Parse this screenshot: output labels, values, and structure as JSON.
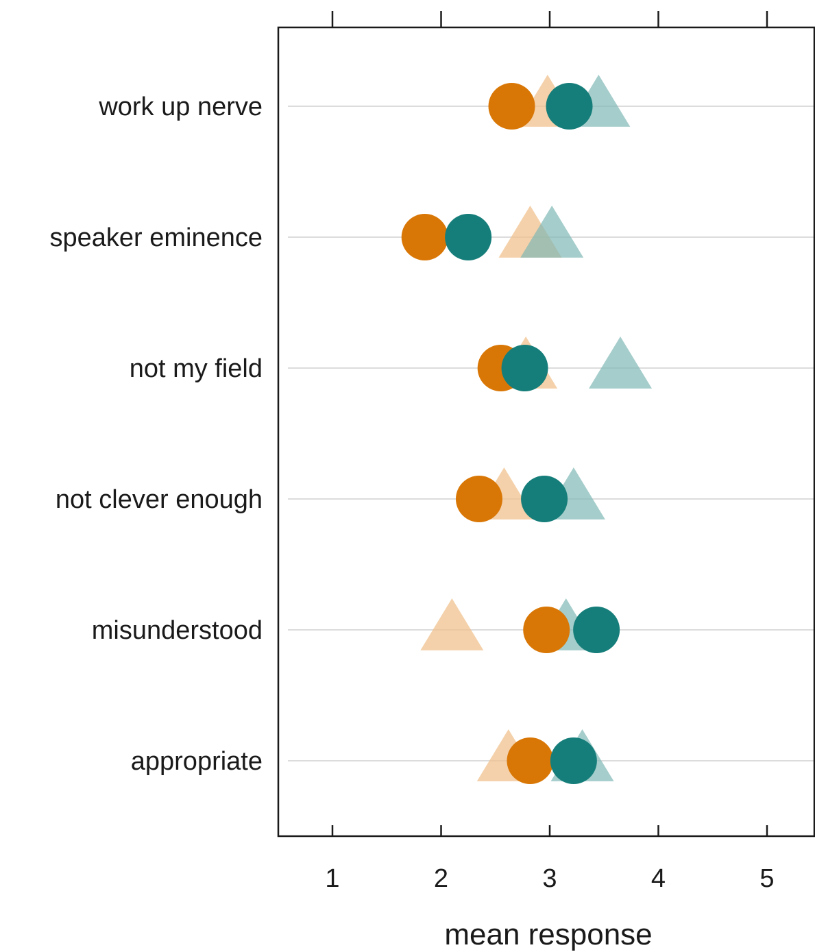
{
  "chart_data": {
    "type": "scatter",
    "title": "",
    "xlabel": "mean response",
    "ylabel": "",
    "xlim": [
      0.5,
      5.44
    ],
    "xticks": [
      1,
      2,
      3,
      4,
      5
    ],
    "xtick_labels": [
      "1",
      "2",
      "3",
      "4",
      "5"
    ],
    "ticks_top": true,
    "grid": "horizontal-at-categories",
    "legend": "none",
    "categories": [
      "work up nerve",
      "speaker eminence",
      "not my field",
      "not clever enough",
      "misunderstood",
      "appropriate"
    ],
    "series": [
      {
        "marker": "triangle",
        "color": "#F0C28E",
        "opacity": 0.75,
        "values": [
          2.98,
          2.82,
          2.78,
          2.58,
          2.1,
          2.62
        ]
      },
      {
        "marker": "triangle",
        "color": "#7FB8B5",
        "opacity": 0.7,
        "values": [
          3.45,
          3.02,
          3.65,
          3.22,
          3.15,
          3.3
        ]
      },
      {
        "marker": "circle",
        "color": "#D97706",
        "opacity": 1,
        "values": [
          2.65,
          1.85,
          2.55,
          2.35,
          2.97,
          2.82
        ]
      },
      {
        "marker": "circle",
        "color": "#167E7A",
        "opacity": 1,
        "values": [
          3.18,
          2.25,
          2.77,
          2.95,
          3.43,
          3.22
        ]
      }
    ]
  }
}
